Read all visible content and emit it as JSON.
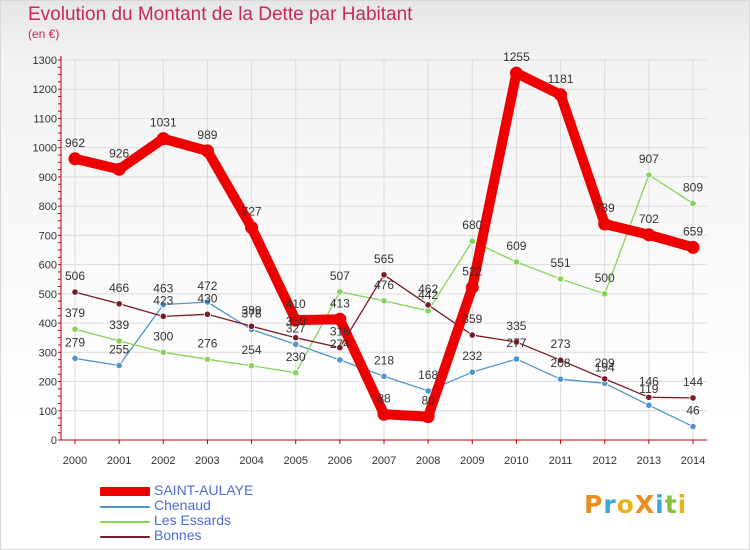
{
  "header": {
    "title": "Evolution du Montant de la Dette par Habitant",
    "unit": "(en €)"
  },
  "brand": {
    "chars": [
      "P",
      "r",
      "o",
      "X",
      "i",
      "t",
      "i"
    ],
    "colors": [
      "#f08c1e",
      "#3aa9d8",
      "#e8b21a",
      "#f08c1e",
      "#3aa9d8",
      "#88c03c",
      "#e8b21a"
    ]
  },
  "chart_data": {
    "type": "line",
    "x": [
      "2000",
      "2001",
      "2002",
      "2003",
      "2004",
      "2005",
      "2006",
      "2007",
      "2008",
      "2009",
      "2010",
      "2011",
      "2012",
      "2013",
      "2014"
    ],
    "ylim": [
      0,
      1300
    ],
    "yticks": [
      "0",
      "100",
      "200",
      "300",
      "400",
      "500",
      "600",
      "700",
      "800",
      "900",
      "1000",
      "1100",
      "1200",
      "1300"
    ],
    "grid": true,
    "legend_position": "bottom-left",
    "series": [
      {
        "name": "SAINT-AULAYE",
        "color": "#ee0000",
        "highlight": true,
        "values": [
          962,
          926,
          1031,
          989,
          727,
          410,
          413,
          88,
          80,
          522,
          1255,
          1181,
          739,
          702,
          659
        ],
        "labels": [
          "962",
          "926",
          "1031",
          "989",
          "727",
          "410",
          "413",
          "88",
          "80",
          "522",
          "1255",
          "1181",
          "739",
          "702",
          "659"
        ]
      },
      {
        "name": "Chenaud",
        "color": "#4f94cc",
        "highlight": false,
        "values": [
          279,
          255,
          463,
          472,
          378,
          327,
          274,
          218,
          168,
          232,
          277,
          208,
          194,
          119,
          46
        ],
        "labels": [
          "279",
          "255",
          "463",
          "472",
          "378",
          "327",
          "274",
          "218",
          "168",
          "232",
          "277",
          "208",
          "194",
          "119",
          "46"
        ]
      },
      {
        "name": "Les Essards",
        "color": "#88d25a",
        "highlight": false,
        "values": [
          379,
          339,
          300,
          276,
          254,
          230,
          507,
          476,
          442,
          680,
          609,
          551,
          500,
          907,
          809
        ],
        "labels": [
          "379",
          "339",
          "300",
          "276",
          "254",
          "230",
          "507",
          "476",
          "442",
          "680",
          "609",
          "551",
          "500",
          "907",
          "809"
        ]
      },
      {
        "name": "Bonnes",
        "color": "#7a1c28",
        "highlight": false,
        "values": [
          506,
          466,
          423,
          430,
          389,
          350,
          316,
          565,
          462,
          359,
          335,
          273,
          209,
          146,
          144
        ],
        "labels": [
          "506",
          "466",
          "423",
          "430",
          "389",
          "350",
          "316",
          "565",
          "462",
          "359",
          "335",
          "273",
          "209",
          "146",
          "144"
        ]
      }
    ]
  }
}
